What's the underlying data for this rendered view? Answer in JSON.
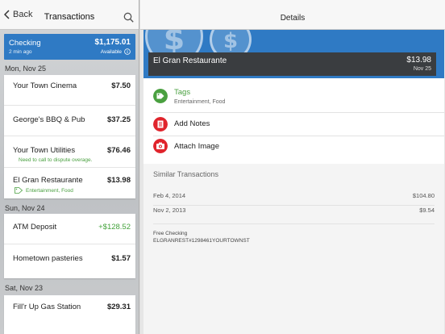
{
  "left": {
    "back_label": "Back",
    "title": "Transactions",
    "account": {
      "name": "Checking",
      "balance": "$1,175.01",
      "updated": "2 min ago",
      "available_label": "Available"
    },
    "days": [
      {
        "label": "Mon, Nov 25",
        "items": [
          {
            "name": "Your Town Cinema",
            "amount": "$7.50"
          },
          {
            "name": "George's BBQ & Pub",
            "amount": "$37.25"
          },
          {
            "name": "Your Town Utilities",
            "amount": "$76.46",
            "note": "Need to call to dispute overage."
          },
          {
            "name": "El Gran Restaurante",
            "amount": "$13.98",
            "tags": "Entertainment, Food"
          }
        ]
      },
      {
        "label": "Sun, Nov 24",
        "items": [
          {
            "name": "ATM Deposit",
            "amount": "+$128.52"
          },
          {
            "name": "Hometown pasteries",
            "amount": "$1.57"
          }
        ]
      },
      {
        "label": "Sat, Nov 23",
        "items": [
          {
            "name": "Fill'r Up Gas Station",
            "amount": "$29.31"
          }
        ]
      }
    ]
  },
  "right": {
    "title": "Details",
    "merchant": {
      "name": "El Gran Restaurante",
      "amount": "$13.98",
      "date": "Nov 25"
    },
    "actions": {
      "tags_label": "Tags",
      "tags_value": "Entertainment, Food",
      "notes_label": "Add Notes",
      "image_label": "Attach Image"
    },
    "similar": {
      "title": "Similar Transactions",
      "rows": [
        {
          "date": "Feb 4, 2014",
          "amount": "$104.80"
        },
        {
          "date": "Nov 2, 2013",
          "amount": "$9.54"
        }
      ]
    },
    "info": {
      "account": "Free Checking",
      "memo": "ELGRANREST#1298461YOURTOWNST"
    }
  },
  "colors": {
    "accent_blue": "#2f7ac4",
    "tag_green": "#4aa040",
    "icon_red": "#e0242c",
    "deposit_green": "#44a33c"
  },
  "icons": [
    "chevron-left-icon",
    "search-icon",
    "info-icon",
    "tag-icon",
    "notes-icon",
    "camera-icon",
    "dollar-coin-icon"
  ]
}
